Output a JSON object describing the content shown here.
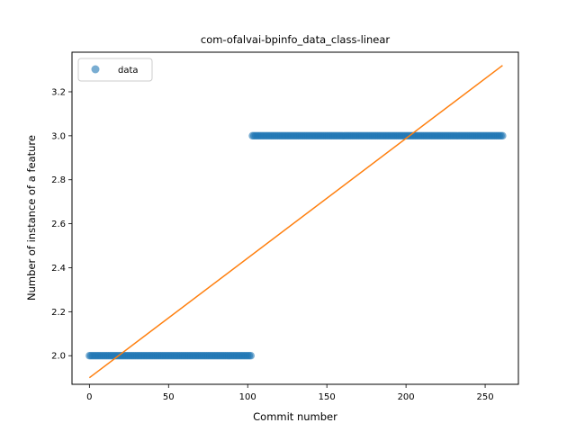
{
  "chart_data": {
    "type": "scatter",
    "title": "com-ofalvai-bpinfo_data_class-linear",
    "xlabel": "Commit number",
    "ylabel": "Number of instance of a feature",
    "xlim": [
      -11,
      271
    ],
    "ylim": [
      1.87,
      3.38
    ],
    "xticks": [
      0,
      50,
      100,
      150,
      200,
      250
    ],
    "yticks": [
      2.0,
      2.2,
      2.4,
      2.6,
      2.8,
      3.0,
      3.2
    ],
    "grid": false,
    "legend_position": "top-left",
    "series": [
      {
        "name": "data",
        "kind": "scatter",
        "color": "#1f77b4",
        "segments": [
          {
            "x_start": 0,
            "x_end": 102,
            "y": 2.0
          },
          {
            "x_start": 103,
            "x_end": 261,
            "y": 3.0
          }
        ]
      },
      {
        "kind": "line",
        "color": "#ff7f0e",
        "x": [
          0,
          261
        ],
        "y": [
          1.9,
          3.32
        ]
      }
    ]
  }
}
